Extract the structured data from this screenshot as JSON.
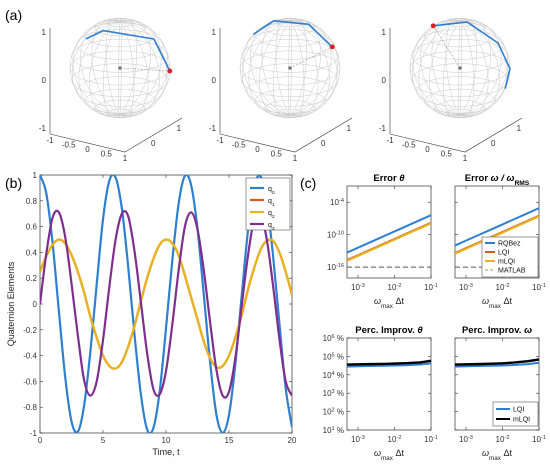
{
  "panel_labels": {
    "a": "(a)",
    "b": "(b)",
    "c": "(c)"
  },
  "colors": {
    "blue": "#2f7fd0",
    "orange": "#d85a1e",
    "yellow": "#e8b31d",
    "purple": "#7e2f8e",
    "black": "#000000",
    "green": "#8ab33a",
    "sphere_grid": "#c9c9c9",
    "red": "#e02020",
    "dot": "#777777"
  },
  "spheres": {
    "tick_labels": [
      "-1",
      "-0.5",
      "0",
      "0.5",
      "1"
    ],
    "right_axis_ticks": [
      "0",
      "1"
    ],
    "vertical_ticks": [
      "1",
      "0",
      "-1"
    ]
  },
  "chart_data": [
    {
      "id": "quaternion",
      "type": "line",
      "xlabel": "Time, t",
      "ylabel": "Quaternion Elements",
      "xlim": [
        0,
        20
      ],
      "ylim": [
        -1,
        1
      ],
      "xticks": [
        "0",
        "5",
        "10",
        "15",
        "20"
      ],
      "yticks": [
        "-1",
        "-0.8",
        "-0.6",
        "-0.4",
        "-0.2",
        "0",
        "0.2",
        "0.4",
        "0.6",
        "0.8",
        "1"
      ],
      "series": [
        {
          "name": "q0",
          "label_main": "q",
          "label_sub": "0",
          "color": "#2f7fd0",
          "x": [
            0,
            0.5,
            1,
            1.5,
            2,
            2.5,
            3,
            3.5,
            4,
            4.5,
            5,
            5.5,
            6,
            6.5,
            7,
            7.5,
            8,
            8.5,
            9,
            9.5,
            10,
            10.5,
            11,
            11.5,
            12,
            12.5,
            13,
            13.5,
            14,
            14.5,
            15,
            15.5,
            16,
            16.5,
            17,
            17.5,
            18,
            18.5,
            19,
            19.5,
            20
          ],
          "y": [
            1,
            0.858,
            0.472,
            -0.057,
            -0.566,
            -0.91,
            -0.99,
            -0.788,
            -0.367,
            0.152,
            0.656,
            0.955,
            0.981,
            0.738,
            0.288,
            -0.235,
            -0.696,
            -0.972,
            -0.962,
            -0.676,
            -0.188,
            0.337,
            0.776,
            0.993,
            0.92,
            0.583,
            0.072,
            -0.45,
            -0.857,
            -0.999,
            -0.86,
            -0.47,
            0.055,
            0.564,
            0.908,
            0.99,
            0.79,
            0.37,
            -0.15,
            -0.654,
            -0.954
          ]
        },
        {
          "name": "q1",
          "label_main": "q",
          "label_sub": "1",
          "color": "#d85a1e",
          "x": [
            0,
            0.5,
            1,
            1.5,
            2,
            2.5,
            3,
            3.5,
            4,
            4.5,
            5,
            5.5,
            6,
            6.5,
            7,
            7.5,
            8,
            8.5,
            9,
            9.5,
            10,
            10.5,
            11,
            11.5,
            12,
            12.5,
            13,
            13.5,
            14,
            14.5,
            15,
            15.5,
            16,
            16.5,
            17,
            17.5,
            18,
            18.5,
            19,
            19.5,
            20
          ],
          "y": [
            0.25,
            0.37,
            0.46,
            0.5,
            0.47,
            0.38,
            0.25,
            0.09,
            -0.1,
            -0.26,
            -0.4,
            -0.48,
            -0.5,
            -0.45,
            -0.33,
            -0.17,
            0.02,
            0.2,
            0.35,
            0.46,
            0.5,
            0.47,
            0.38,
            0.22,
            0.05,
            -0.12,
            -0.29,
            -0.42,
            -0.49,
            -0.48,
            -0.4,
            -0.26,
            -0.09,
            0.11,
            0.28,
            0.42,
            0.49,
            0.49,
            0.4,
            0.25,
            0.07
          ]
        },
        {
          "name": "q2",
          "label_main": "q",
          "label_sub": "2",
          "color": "#e8b31d",
          "x": [
            0,
            0.5,
            1,
            1.5,
            2,
            2.5,
            3,
            3.5,
            4,
            4.5,
            5,
            5.5,
            6,
            6.5,
            7,
            7.5,
            8,
            8.5,
            9,
            9.5,
            10,
            10.5,
            11,
            11.5,
            12,
            12.5,
            13,
            13.5,
            14,
            14.5,
            15,
            15.5,
            16,
            16.5,
            17,
            17.5,
            18,
            18.5,
            19,
            19.5,
            20
          ],
          "y": [
            0.25,
            0.37,
            0.46,
            0.5,
            0.47,
            0.38,
            0.25,
            0.09,
            -0.1,
            -0.26,
            -0.4,
            -0.48,
            -0.5,
            -0.45,
            -0.33,
            -0.17,
            0.02,
            0.2,
            0.35,
            0.46,
            0.5,
            0.47,
            0.38,
            0.22,
            0.05,
            -0.12,
            -0.29,
            -0.42,
            -0.49,
            -0.48,
            -0.4,
            -0.26,
            -0.09,
            0.11,
            0.28,
            0.42,
            0.49,
            0.49,
            0.4,
            0.25,
            0.07
          ]
        },
        {
          "name": "q3",
          "label_main": "q",
          "label_sub": "3",
          "color": "#7e2f8e",
          "x": [
            0,
            0.5,
            1,
            1.5,
            2,
            2.5,
            3,
            3.5,
            4,
            4.5,
            5,
            5.5,
            6,
            6.5,
            7,
            7.5,
            8,
            8.5,
            9,
            9.5,
            10,
            10.5,
            11,
            11.5,
            12,
            12.5,
            13,
            13.5,
            14,
            14.5,
            15,
            15.5,
            16,
            16.5,
            17,
            17.5,
            18,
            18.5,
            19,
            19.5,
            20
          ],
          "y": [
            0,
            0.39,
            0.67,
            0.71,
            0.52,
            0.16,
            -0.24,
            -0.59,
            -0.71,
            -0.6,
            -0.28,
            0.13,
            0.5,
            0.7,
            0.68,
            0.41,
            0.02,
            -0.38,
            -0.66,
            -0.7,
            -0.52,
            -0.16,
            0.26,
            0.6,
            0.71,
            0.58,
            0.26,
            -0.14,
            -0.51,
            -0.71,
            -0.68,
            -0.42,
            -0.02,
            0.37,
            0.66,
            0.7,
            0.5,
            0.14,
            -0.27,
            -0.6,
            -0.71
          ]
        }
      ]
    },
    {
      "id": "error-theta",
      "type": "line",
      "title_main": "Error ",
      "title_sym": "θ",
      "xlabel_sym": "ω",
      "xlabel_sub": "max",
      "xlabel_rest": " Δt",
      "log_x": true,
      "log_y": true,
      "xlim": [
        0.0005,
        0.1
      ],
      "ylim": [
        1e-18,
        0.1
      ],
      "xticks_base": [
        "10",
        "10",
        "10"
      ],
      "xticks_exp": [
        "-3",
        "-2",
        "-1"
      ],
      "yticks_base": [
        "10",
        "10",
        "10"
      ],
      "yticks_exp": [
        "-16",
        "-10",
        "-4"
      ],
      "x": [
        0.0005,
        0.001,
        0.002,
        0.005,
        0.01,
        0.02,
        0.05,
        0.1
      ],
      "series": [
        {
          "name": "RQBez",
          "color": "#2f7fd0",
          "y": [
            5e-14,
            4e-13,
            3.2e-12,
            5e-11,
            4e-10,
            3.2e-09,
            5e-08,
            4e-07
          ]
        },
        {
          "name": "LQI",
          "color": "#d85a1e",
          "y": [
            2e-15,
            1.6e-14,
            1.3e-13,
            2e-12,
            1.6e-11,
            1.3e-10,
            2e-09,
            1.6e-08
          ]
        },
        {
          "name": "mLQI",
          "color": "#e8b31d",
          "y": [
            1.5e-15,
            1.2e-14,
            1e-13,
            1.5e-12,
            1.2e-11,
            1e-10,
            1.5e-09,
            1.2e-08
          ]
        },
        {
          "name": "MATLAB",
          "color": "#8ab33a",
          "dashed": true,
          "y": [
            1e-16,
            1e-16,
            1e-16,
            1e-16,
            1e-16,
            1e-16,
            1e-16,
            1e-16
          ]
        }
      ]
    },
    {
      "id": "error-omega",
      "type": "line",
      "title_main": "Error ",
      "title_sym": "ω / ω",
      "title_sub": "RMS",
      "xlabel_sym": "ω",
      "xlabel_sub": "max",
      "xlabel_rest": " Δt",
      "log_x": true,
      "log_y": true,
      "xlim": [
        0.0005,
        0.1
      ],
      "ylim": [
        1e-18,
        0.1
      ],
      "legend": [
        "RQBez",
        "LQI",
        "mLQI",
        "MATLAB"
      ],
      "x": [
        0.0005,
        0.001,
        0.002,
        0.005,
        0.01,
        0.02,
        0.05,
        0.1
      ],
      "series": [
        {
          "name": "RQBez",
          "color": "#2f7fd0",
          "y": [
            1e-12,
            8e-12,
            6.4e-11,
            1e-09,
            8e-09,
            6.4e-08,
            1e-06,
            8e-06
          ]
        },
        {
          "name": "LQI",
          "color": "#d85a1e",
          "y": [
            4e-14,
            3.2e-13,
            2.6e-12,
            4e-11,
            3.2e-10,
            2.6e-09,
            4e-08,
            3.2e-07
          ]
        },
        {
          "name": "mLQI",
          "color": "#e8b31d",
          "y": [
            3e-14,
            2.4e-13,
            2e-12,
            3e-11,
            2.4e-10,
            2e-09,
            3e-08,
            2.4e-07
          ]
        },
        {
          "name": "MATLAB",
          "color": "#8ab33a",
          "dashed": true,
          "y": [
            1e-16,
            1e-16,
            1e-16,
            1e-16,
            1e-16,
            1e-16,
            1e-16,
            1e-16
          ]
        }
      ]
    },
    {
      "id": "improv-theta",
      "type": "line",
      "title_main": "Perc. Improv. ",
      "title_sym": "θ",
      "xlabel_sym": "ω",
      "xlabel_sub": "max",
      "xlabel_rest": " Δt",
      "log_x": true,
      "log_y": true,
      "xlim": [
        0.0005,
        0.1
      ],
      "ylim": [
        10,
        1000000
      ],
      "yticks_base": [
        "10",
        "10",
        "10",
        "10",
        "10",
        "10"
      ],
      "yticks_exp": [
        "1",
        "2",
        "3",
        "4",
        "5",
        "6"
      ],
      "ytick_unit": " %",
      "x": [
        0.0005,
        0.001,
        0.002,
        0.005,
        0.01,
        0.02,
        0.05,
        0.1
      ],
      "series": [
        {
          "name": "LQI",
          "color": "#2f7fd0",
          "y": [
            28000,
            29000,
            30000,
            31000,
            32000,
            33000,
            36000,
            42000
          ]
        },
        {
          "name": "mLQI",
          "color": "#000000",
          "y": [
            36000,
            37000,
            38000,
            39000,
            41000,
            43000,
            47000,
            58000
          ]
        }
      ]
    },
    {
      "id": "improv-omega",
      "type": "line",
      "title_main": "Perc. Improv. ",
      "title_sym": "ω",
      "xlabel_sym": "ω",
      "xlabel_sub": "max",
      "xlabel_rest": " Δt",
      "log_x": true,
      "log_y": true,
      "xlim": [
        0.0005,
        0.1
      ],
      "ylim": [
        10,
        1000000
      ],
      "legend": [
        "LQI",
        "mLQI"
      ],
      "x": [
        0.0005,
        0.001,
        0.002,
        0.005,
        0.01,
        0.02,
        0.05,
        0.1
      ],
      "series": [
        {
          "name": "LQI",
          "color": "#2f7fd0",
          "y": [
            28000,
            29000,
            30000,
            31000,
            32000,
            34000,
            38000,
            45000
          ]
        },
        {
          "name": "mLQI",
          "color": "#000000",
          "y": [
            36000,
            37000,
            38000,
            40000,
            42000,
            46000,
            55000,
            68000
          ]
        }
      ]
    }
  ]
}
